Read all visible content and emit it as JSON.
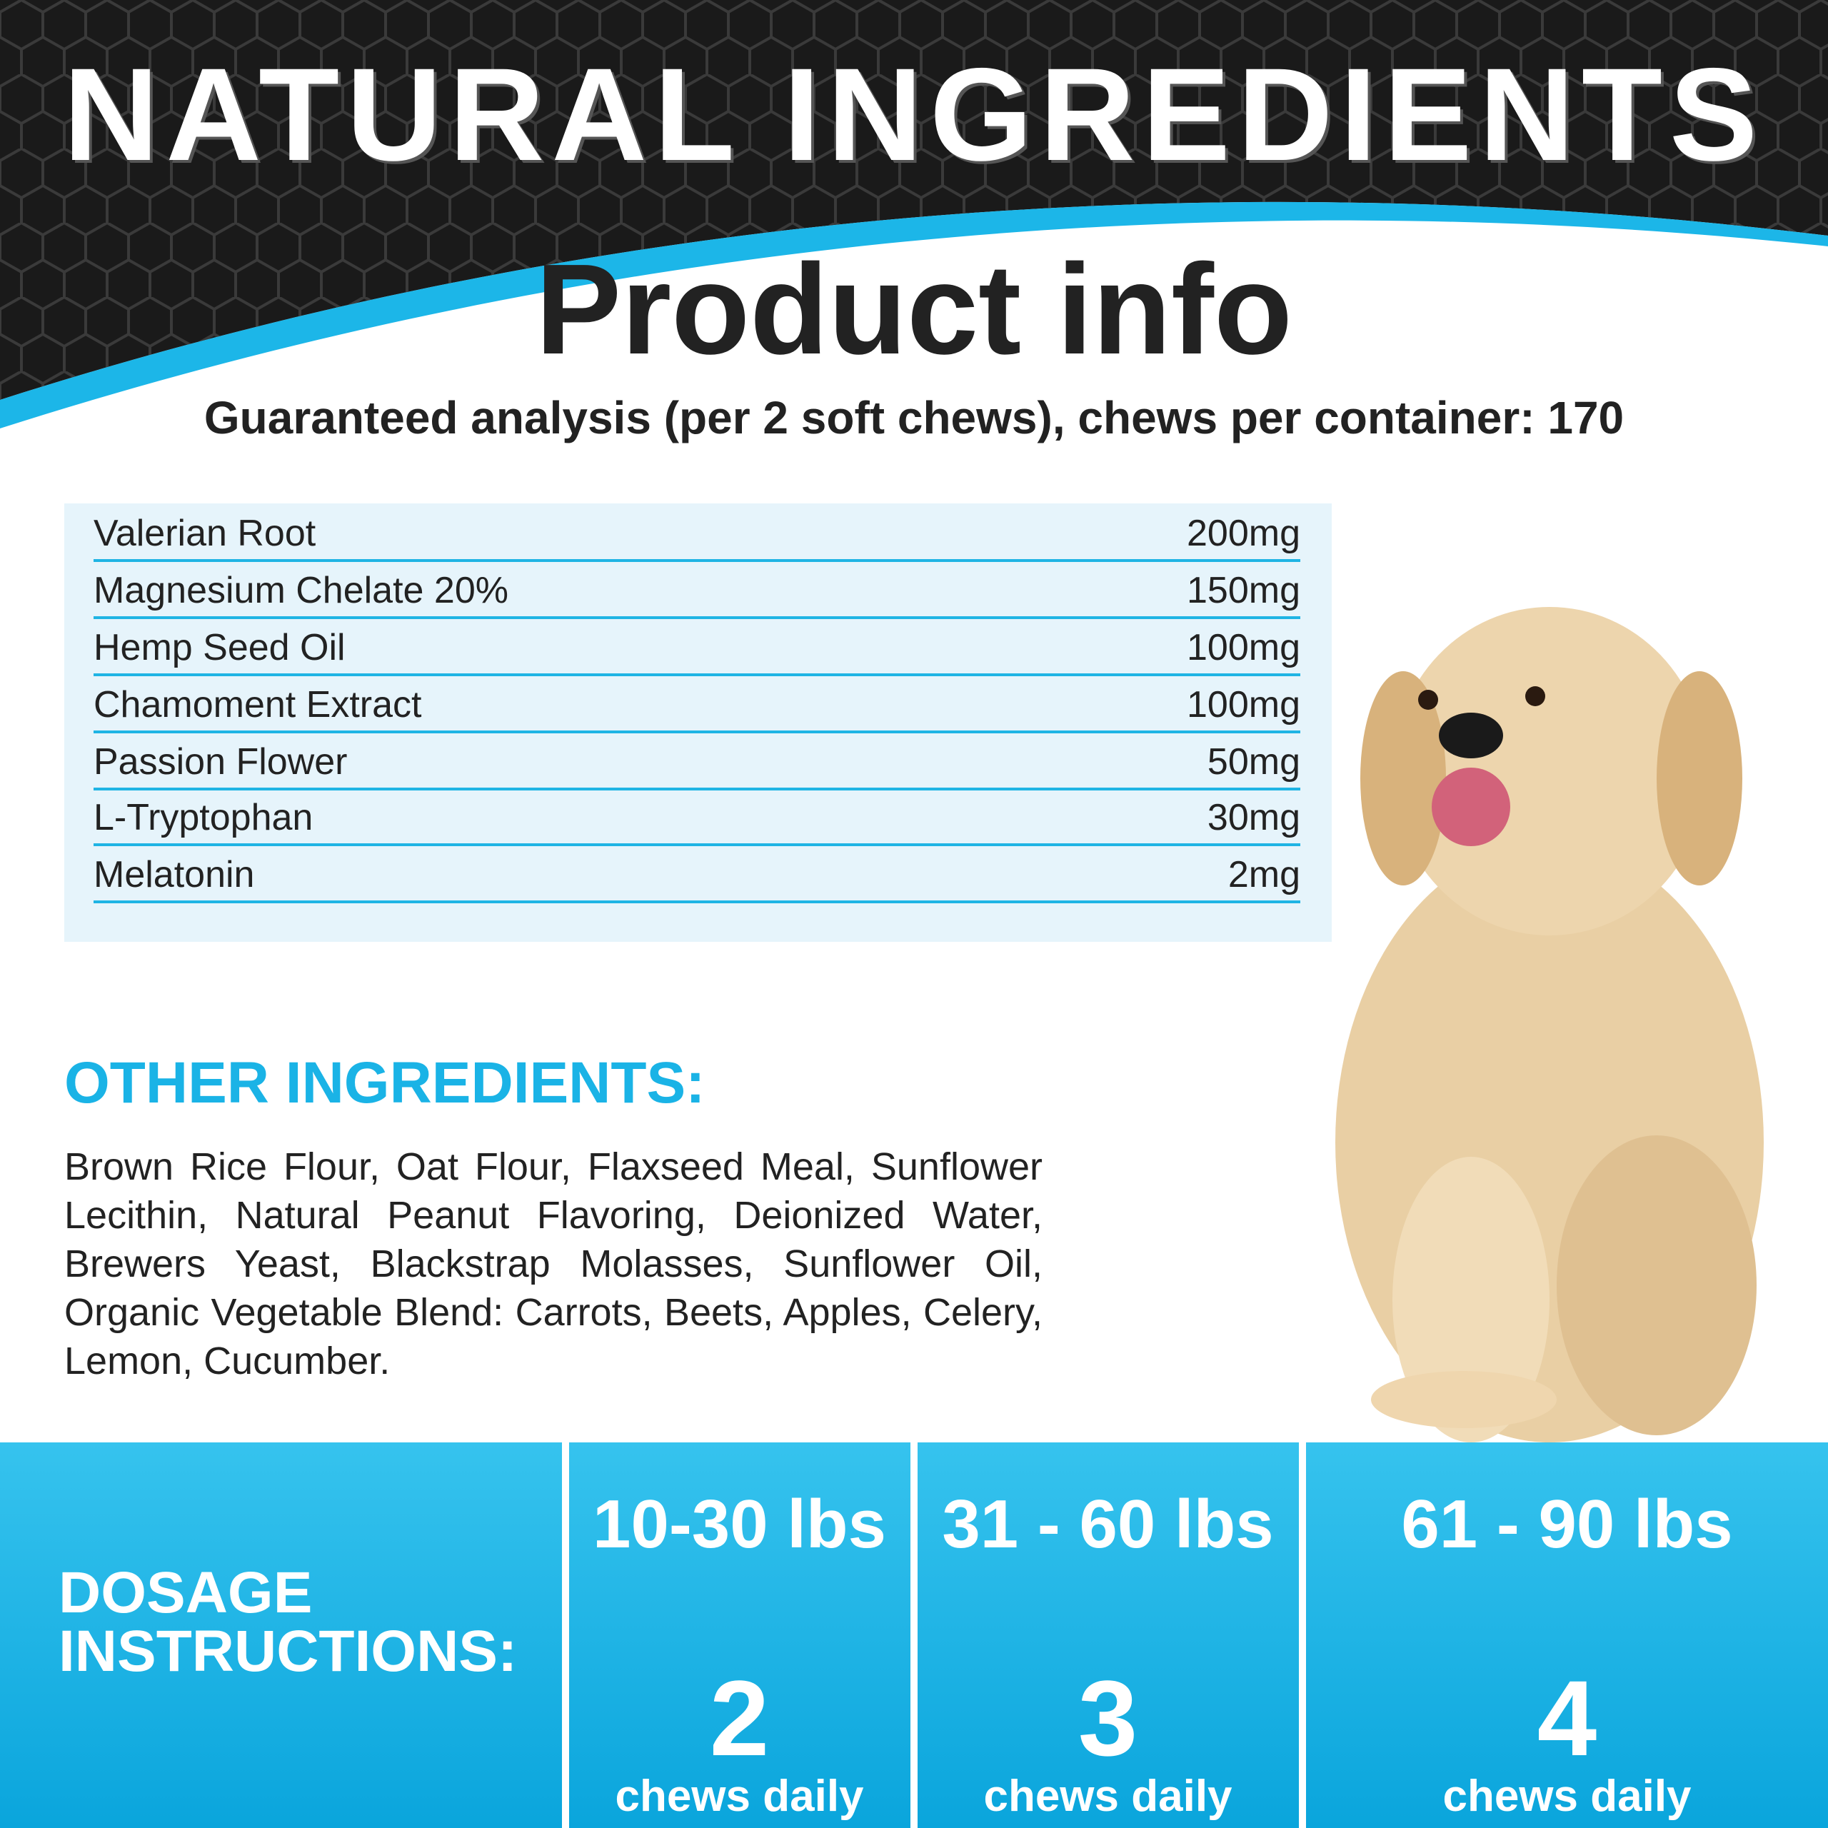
{
  "header": {
    "title": "NATURAL INGREDIENTS"
  },
  "product_info": {
    "title": "Product info",
    "subtitle": "Guaranteed analysis (per 2 soft chews), chews per container: 170"
  },
  "table": {
    "rows": [
      [
        "Valerian Root",
        "200mg"
      ],
      [
        "Magnesium Chelate 20%",
        "150mg"
      ],
      [
        "Hemp Seed Oil",
        "100mg"
      ],
      [
        "Chamoment Extract",
        "100mg"
      ],
      [
        "Passion Flower",
        "50mg"
      ],
      [
        "L-Tryptophan",
        "30mg"
      ],
      [
        "Melatonin",
        "2mg"
      ]
    ]
  },
  "other_ingredients": {
    "heading": "OTHER INGREDIENTS:",
    "text": "Brown Rice Flour, Oat Flour, Flaxseed Meal, Sunflower Lecithin, Natural Peanut Flavoring, Deionized Water, Brewers Yeast, Blackstrap Molasses, Sunflower Oil, Organic Vegetable Blend: Carrots, Beets, Apples, Celery, Lemon, Cucumber."
  },
  "dosage": {
    "heading": "DOSAGE INSTRUCTIONS:",
    "columns": [
      {
        "weight": "10-30 lbs",
        "count": "2",
        "unit": "chews daily"
      },
      {
        "weight": "31 - 60 lbs",
        "count": "3",
        "unit": "chews daily"
      },
      {
        "weight": "61 - 90 lbs",
        "count": "4",
        "unit": "chews daily"
      }
    ]
  }
}
